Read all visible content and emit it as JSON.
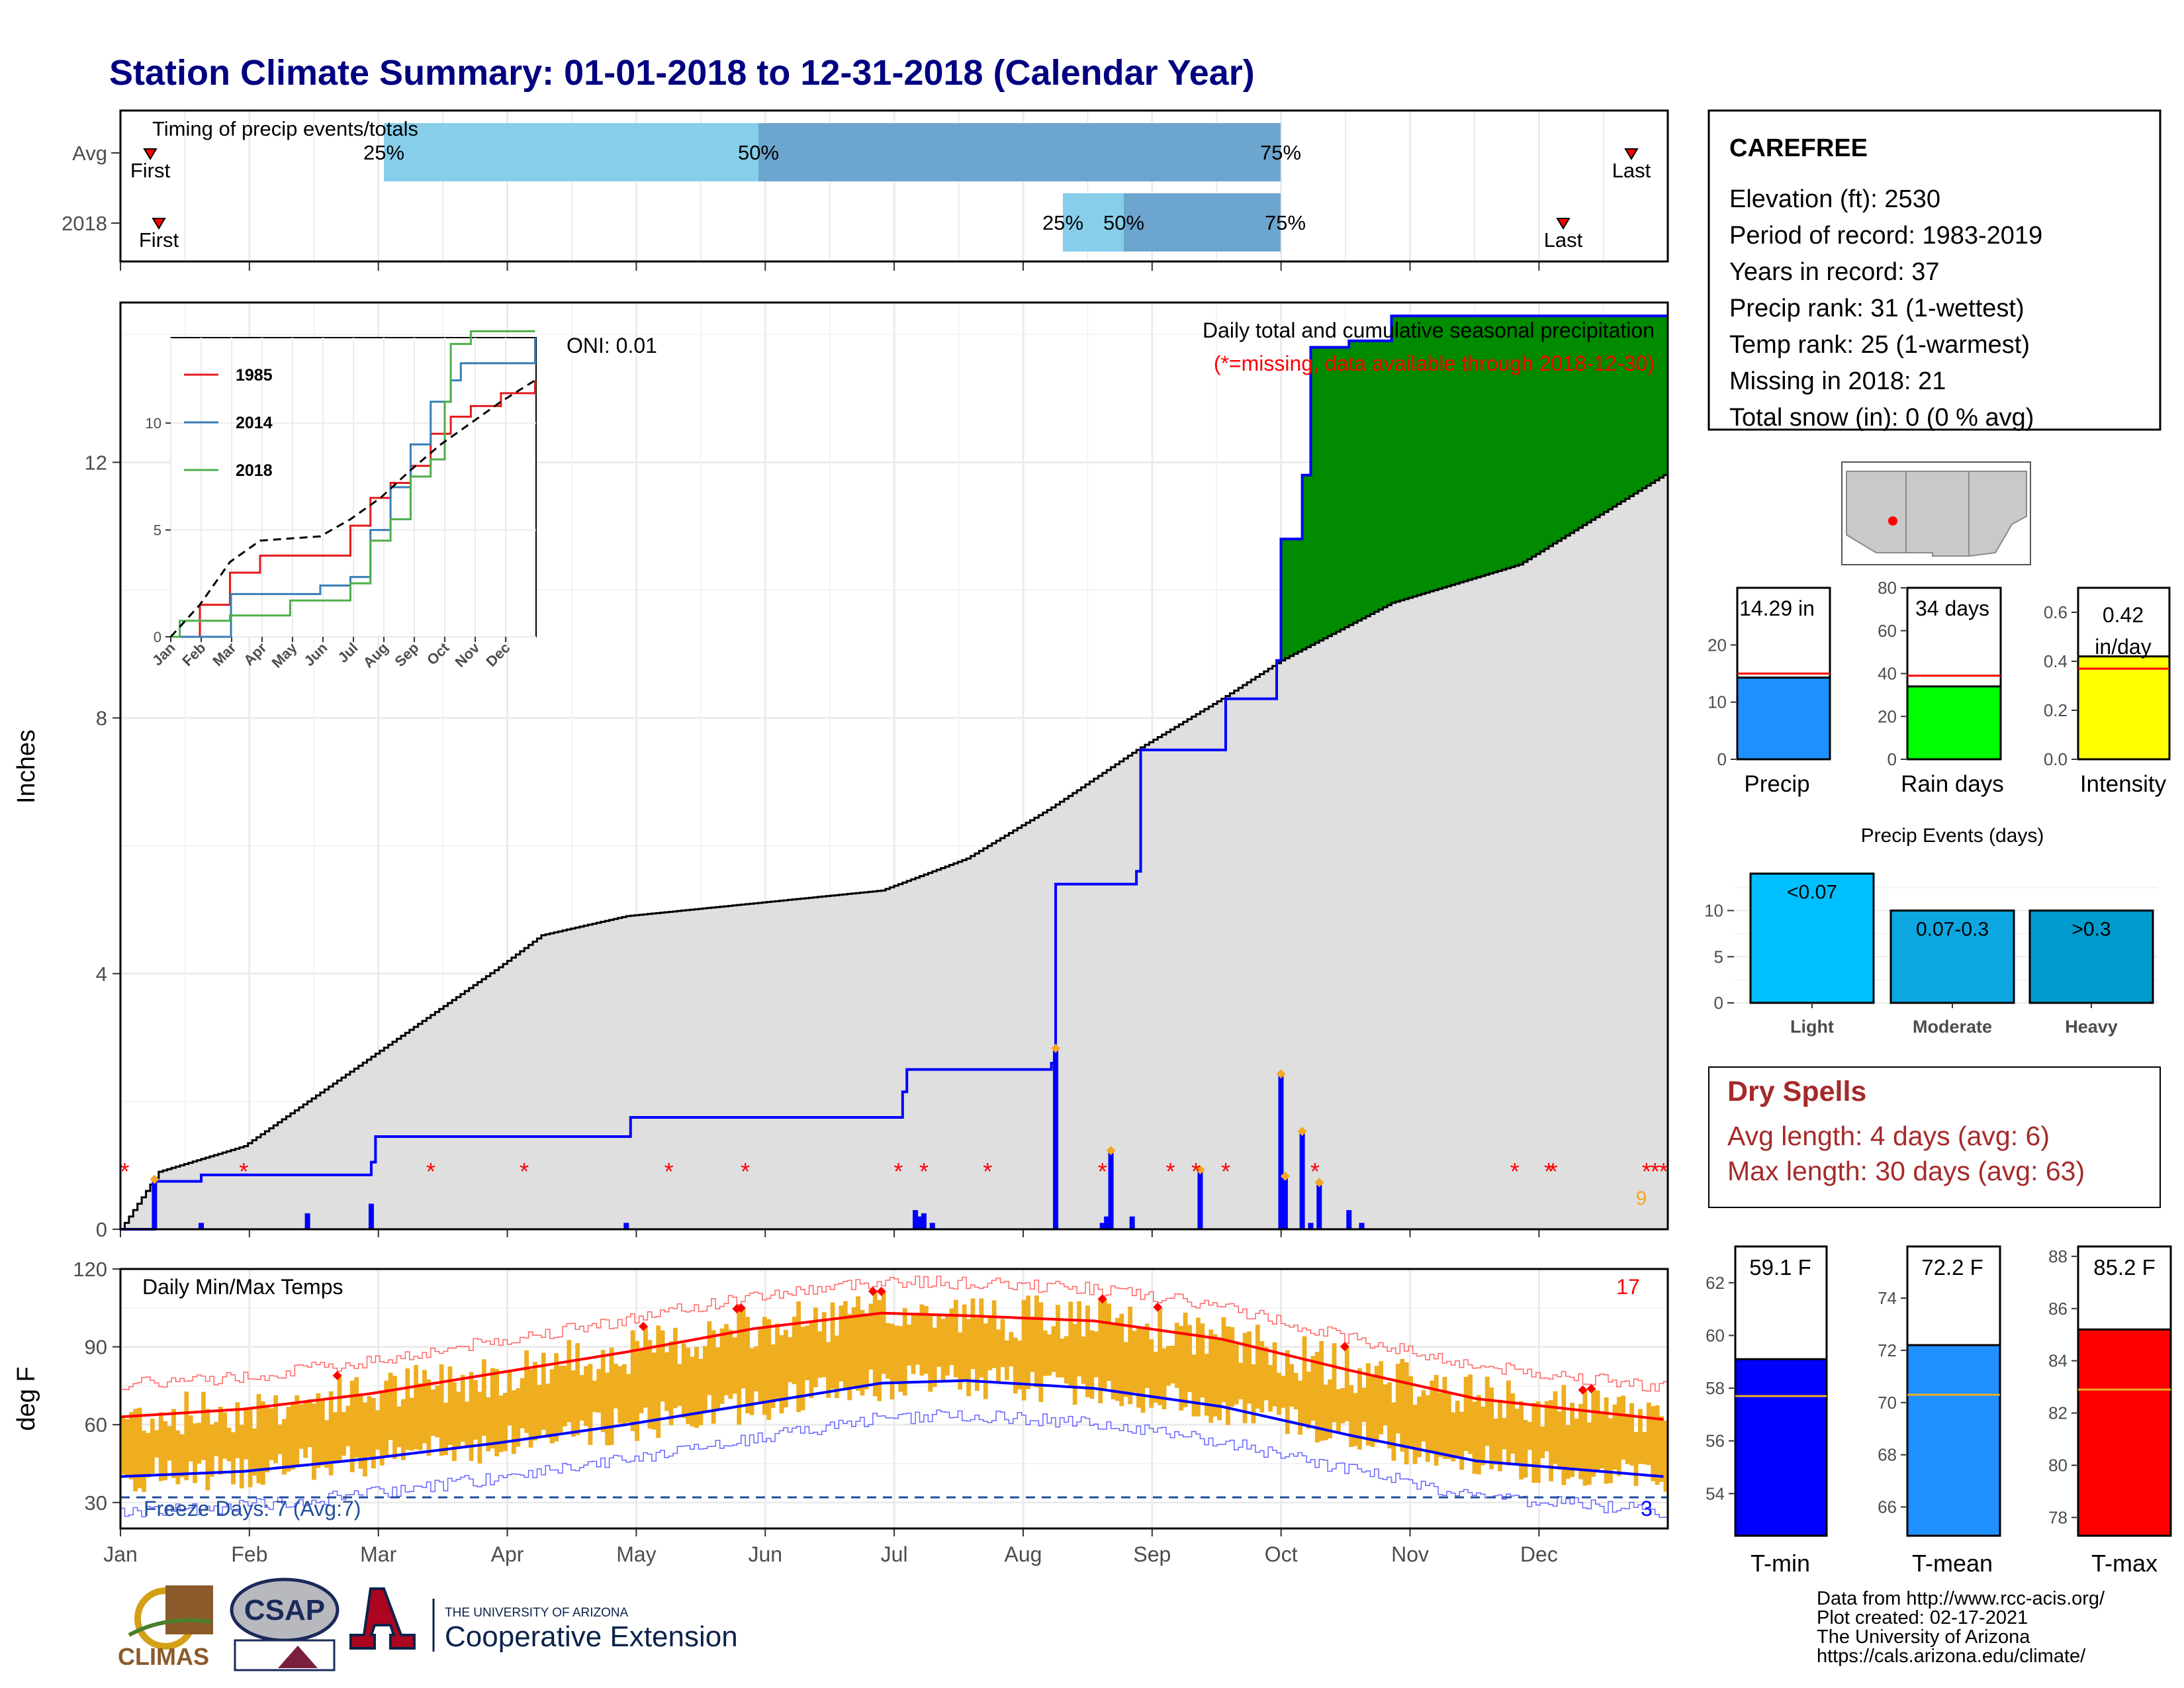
{
  "title": "Station Climate Summary: 01-01-2018 to 12-31-2018 (Calendar Year)",
  "colors": {
    "title": "#000080",
    "brown": "#8B5A00",
    "green": "#008B00",
    "gray": "#DFDFDF",
    "blue": "#0000FF",
    "red": "#FF0000",
    "orange": "#EEAE20",
    "lightblue": "#87CEEB",
    "steel": "#6CA5CD",
    "dryspell": "#A52A2A"
  },
  "timing": {
    "title": "Timing of precip events/totals",
    "rows": [
      {
        "label": "Avg",
        "first": "First",
        "last": "Last",
        "p25": "25%",
        "p50": "50%",
        "p75": "75%"
      },
      {
        "label": "2018",
        "first": "First",
        "last": "Last",
        "p25": "25%",
        "p50": "50%",
        "p75": "75%"
      }
    ]
  },
  "station": {
    "name": "CAREFREE",
    "lines": [
      "Elevation (ft): 2530",
      "Period of record: 1983-2019",
      "Years in record: 37",
      "Precip rank: 31 (1-wettest)",
      "Temp rank: 25 (1-warmest)",
      "Missing in 2018: 21",
      "Total snow (in): 0 (0 % avg)"
    ]
  },
  "precip_panel": {
    "ylabel": "Inches",
    "title": "Daily total and cumulative seasonal precipitation",
    "note": "(*=missing, data available through 2018-12-30)",
    "oni": "ONI: 0.01",
    "count_label": "9",
    "yticks": [
      "0",
      "4",
      "8",
      "12"
    ]
  },
  "inset": {
    "legend": [
      "1985",
      "2014",
      "2018"
    ],
    "yticks": [
      "0",
      "5",
      "10"
    ],
    "months": [
      "Jan",
      "Feb",
      "Mar",
      "Apr",
      "May",
      "Jun",
      "Jul",
      "Aug",
      "Sep",
      "Oct",
      "Nov",
      "Dec"
    ]
  },
  "temp_panel": {
    "ylabel": "deg F",
    "title": "Daily Min/Max Temps",
    "count_hot": "17",
    "freeze": "Freeze Days: 7 (Avg:7)",
    "count_cold": "3",
    "yticks": [
      "30",
      "60",
      "90",
      "120"
    ],
    "months": [
      "Jan",
      "Feb",
      "Mar",
      "Apr",
      "May",
      "Jun",
      "Jul",
      "Aug",
      "Sep",
      "Oct",
      "Nov",
      "Dec"
    ]
  },
  "summary_bars": {
    "precip": {
      "label": "Precip",
      "value_text": "14.29 in",
      "yticks": [
        "0",
        "10",
        "20"
      ]
    },
    "raindays": {
      "label": "Rain days",
      "value_text": "34 days",
      "yticks": [
        "0",
        "20",
        "40",
        "60",
        "80"
      ]
    },
    "intensity": {
      "label": "Intensity",
      "value_text_1": "0.42",
      "value_text_2": "in/day",
      "yticks": [
        "0.0",
        "0.2",
        "0.4",
        "0.6"
      ]
    }
  },
  "events": {
    "title": "Precip Events (days)",
    "yticks": [
      "0",
      "5",
      "10"
    ],
    "bars": [
      {
        "cat": "Light",
        "range": "<0.07"
      },
      {
        "cat": "Moderate",
        "range": "0.07-0.3"
      },
      {
        "cat": "Heavy",
        "range": ">0.3"
      }
    ]
  },
  "dry_spells": {
    "title": "Dry Spells",
    "avg": "Avg length: 4 days (avg: 6)",
    "max": "Max length: 30 days (avg: 63)"
  },
  "temp_bars": {
    "tmin": {
      "label": "T-min",
      "value_text": "59.1 F",
      "yticks": [
        "54",
        "56",
        "58",
        "60",
        "62"
      ]
    },
    "tmean": {
      "label": "T-mean",
      "value_text": "72.2 F",
      "yticks": [
        "66",
        "68",
        "70",
        "72",
        "74"
      ]
    },
    "tmax": {
      "label": "T-max",
      "value_text": "85.2 F",
      "yticks": [
        "78",
        "80",
        "82",
        "84",
        "86",
        "88"
      ]
    }
  },
  "footer": {
    "lines": [
      "Data from http://www.rcc-acis.org/",
      "Plot created: 02-17-2021",
      "The University of Arizona",
      "https://cals.arizona.edu/climate/"
    ],
    "logo1": "CLIMAS",
    "logo2": "CSAP",
    "logo3_line1": "THE UNIVERSITY OF ARIZONA",
    "logo3_line2": "Cooperative Extension"
  },
  "chart_data": [
    {
      "type": "area",
      "name": "cumulative precipitation",
      "x_unit": "day of year",
      "ylim": [
        0,
        14.5
      ],
      "avg_cumulative": {
        "x": [
          1,
          10,
          30,
          60,
          90,
          100,
          120,
          150,
          180,
          200,
          220,
          240,
          260,
          274,
          300,
          330,
          364
        ],
        "y": [
          0,
          0.9,
          1.3,
          2.7,
          4.1,
          4.6,
          4.9,
          5.1,
          5.3,
          5.8,
          6.6,
          7.5,
          8.3,
          8.9,
          9.8,
          10.4,
          11.8
        ]
      },
      "cumulative_2018": {
        "x": [
          1,
          9,
          20,
          60,
          61,
          120,
          121,
          180,
          185,
          186,
          220,
          221,
          240,
          241,
          260,
          261,
          273,
          274,
          279,
          281,
          290,
          300,
          364
        ],
        "y": [
          0,
          0.75,
          0.85,
          1.05,
          1.45,
          1.45,
          1.75,
          1.75,
          2.15,
          2.5,
          2.6,
          5.4,
          5.6,
          7.5,
          7.5,
          8.3,
          8.9,
          10.8,
          11.8,
          13.8,
          13.9,
          14.29,
          14.29
        ]
      },
      "daily_precip": {
        "x": [
          9,
          20,
          45,
          60,
          120,
          188,
          189,
          190,
          192,
          221,
          232,
          233,
          234,
          239,
          255,
          274,
          275,
          279,
          281,
          283,
          290,
          293
        ],
        "y": [
          0.75,
          0.1,
          0.25,
          0.4,
          0.1,
          0.3,
          0.2,
          0.25,
          0.1,
          2.8,
          0.1,
          0.2,
          1.2,
          0.2,
          0.9,
          2.4,
          0.8,
          1.5,
          0.1,
          0.7,
          0.3,
          0.1
        ]
      },
      "missing_days": [
        2,
        30,
        74,
        96,
        130,
        148,
        184,
        190,
        205,
        232,
        248,
        254,
        261,
        282,
        329,
        337,
        338,
        360,
        362,
        364
      ]
    },
    {
      "type": "line",
      "name": "inset cumulative comparison",
      "ylim": [
        0,
        14
      ],
      "series": [
        {
          "name": "1985",
          "x": [
            1,
            30,
            60,
            90,
            150,
            180,
            200,
            220,
            240,
            260,
            280,
            300,
            330,
            364
          ],
          "y": [
            0,
            1.5,
            3,
            3.8,
            3.8,
            5.2,
            6.5,
            7.2,
            8,
            9.5,
            10.3,
            10.8,
            11.4,
            12
          ]
        },
        {
          "name": "2014",
          "x": [
            1,
            60,
            61,
            150,
            180,
            200,
            220,
            240,
            260,
            280,
            290,
            360,
            364
          ],
          "y": [
            0,
            0,
            2,
            2.4,
            2.8,
            5,
            7,
            9,
            11,
            12,
            12.8,
            12.8,
            14
          ]
        },
        {
          "name": "2018",
          "x": [
            1,
            10,
            60,
            120,
            180,
            200,
            220,
            240,
            260,
            274,
            280,
            300,
            364
          ],
          "y": [
            0,
            0.75,
            1,
            1.7,
            2.5,
            4.5,
            5.5,
            7.5,
            8.3,
            11,
            13.7,
            14.3,
            14.3
          ]
        },
        {
          "name": "avg",
          "x": [
            1,
            30,
            60,
            90,
            150,
            180,
            210,
            240,
            270,
            300,
            330,
            364
          ],
          "y": [
            0,
            1.5,
            3.5,
            4.5,
            4.7,
            5.5,
            6.5,
            7.8,
            9,
            10,
            11,
            12
          ]
        }
      ]
    },
    {
      "type": "line",
      "name": "daily temperatures",
      "ylim": [
        20,
        120
      ],
      "avg_max": {
        "x": [
          1,
          30,
          60,
          90,
          120,
          150,
          180,
          200,
          230,
          260,
          290,
          320,
          364
        ],
        "y": [
          63,
          66,
          72,
          80,
          88,
          97,
          103,
          102,
          100,
          93,
          81,
          70,
          62
        ]
      },
      "avg_min": {
        "x": [
          1,
          30,
          60,
          90,
          120,
          150,
          180,
          200,
          230,
          260,
          290,
          320,
          364
        ],
        "y": [
          40,
          42,
          47,
          53,
          60,
          68,
          76,
          77,
          74,
          67,
          56,
          46,
          40
        ]
      },
      "freeze_line": 32
    },
    {
      "type": "bar",
      "name": "season totals",
      "categories": [
        "Precip",
        "Rain days",
        "Intensity"
      ],
      "values": [
        14.29,
        34,
        0.42
      ],
      "averages": [
        15,
        39,
        0.37
      ]
    },
    {
      "type": "bar",
      "name": "precip events",
      "categories": [
        "Light",
        "Moderate",
        "Heavy"
      ],
      "values": [
        14,
        10,
        10
      ]
    },
    {
      "type": "bar",
      "name": "temperature means",
      "categories": [
        "T-min",
        "T-mean",
        "T-max"
      ],
      "values": [
        59.1,
        72.2,
        85.2
      ],
      "averages": [
        57.7,
        70.3,
        82.9
      ]
    }
  ]
}
